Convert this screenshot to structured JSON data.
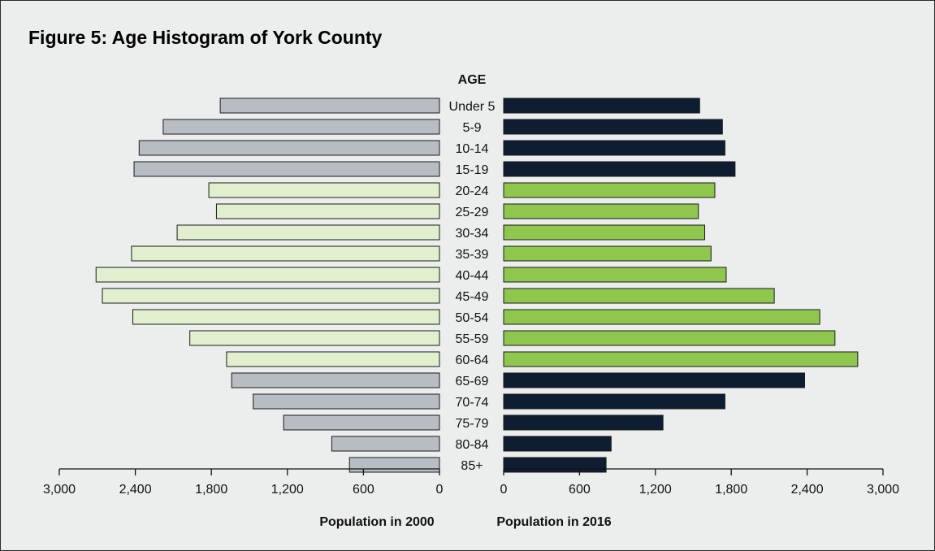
{
  "title": "Figure 5: Age Histogram of York County",
  "chart_data": {
    "type": "bar",
    "orientation": "horizontal-back-to-back",
    "center_label": "AGE",
    "categories": [
      "Under 5",
      "5-9",
      "10-14",
      "15-19",
      "20-24",
      "25-29",
      "30-34",
      "35-39",
      "40-44",
      "45-49",
      "50-54",
      "55-59",
      "60-64",
      "65-69",
      "70-74",
      "75-79",
      "80-84",
      "85+"
    ],
    "left": {
      "axis_label": "Population in 2000",
      "values": [
        1730,
        2180,
        2370,
        2410,
        1820,
        1760,
        2070,
        2430,
        2710,
        2660,
        2420,
        1970,
        1680,
        1640,
        1470,
        1230,
        850,
        710
      ],
      "xlim": [
        0,
        3000
      ],
      "ticks": [
        "3,000",
        "2,400",
        "1,800",
        "1,200",
        "600",
        "0"
      ],
      "tick_values": [
        3000,
        2400,
        1800,
        1200,
        600,
        0
      ]
    },
    "right": {
      "axis_label": "Population in 2016",
      "values": [
        1550,
        1730,
        1750,
        1830,
        1670,
        1540,
        1590,
        1640,
        1760,
        2140,
        2500,
        2620,
        2800,
        2380,
        1750,
        1260,
        850,
        810
      ],
      "xlim": [
        0,
        3000
      ],
      "ticks": [
        "0",
        "600",
        "1,200",
        "1,800",
        "2,400",
        "3,000"
      ],
      "tick_values": [
        0,
        600,
        1200,
        1800,
        2400,
        3000
      ]
    },
    "highlight_group": [
      "20-24",
      "25-29",
      "30-34",
      "35-39",
      "40-44",
      "45-49",
      "50-54",
      "55-59",
      "60-64"
    ],
    "colors": {
      "left_default": "#b8bcc3",
      "left_highlight": "#e2efcf",
      "right_default": "#0f1d33",
      "right_highlight": "#8ec64e",
      "bar_stroke": "#1a1a1a"
    }
  }
}
